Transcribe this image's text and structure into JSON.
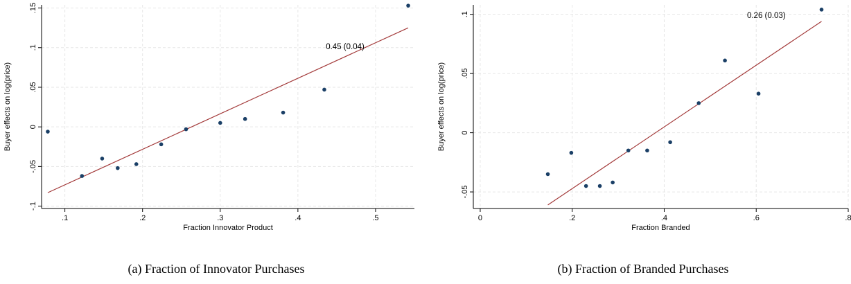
{
  "chart_data": [
    {
      "type": "scatter",
      "caption": "(a)  Fraction of Innovator Purchases",
      "xlabel": "Fraction Innovator Product",
      "ylabel": "Buyer effects on log(price)",
      "xlim": [
        0.07,
        0.55
      ],
      "ylim": [
        -0.103,
        0.154
      ],
      "xticks": [
        0.1,
        0.2,
        0.3,
        0.4,
        0.5
      ],
      "xtick_labels": [
        ".1",
        ".2",
        ".3",
        ".4",
        ".5"
      ],
      "yticks": [
        -0.1,
        -0.05,
        0,
        0.05,
        0.1,
        0.15
      ],
      "ytick_labels": [
        "-.1",
        "-.05",
        "0",
        ".05",
        ".1",
        ".15"
      ],
      "grid": true,
      "points": {
        "x": [
          0.078,
          0.122,
          0.148,
          0.168,
          0.192,
          0.224,
          0.256,
          0.3,
          0.332,
          0.381,
          0.434,
          0.542
        ],
        "y": [
          -0.006,
          -0.062,
          -0.04,
          -0.052,
          -0.047,
          -0.022,
          -0.003,
          0.005,
          0.01,
          0.018,
          0.047,
          0.153
        ]
      },
      "fit_line": {
        "x": [
          0.078,
          0.542
        ],
        "y": [
          -0.083,
          0.125
        ]
      },
      "annotation": {
        "text": "0.45 (0.04)",
        "x": 0.436,
        "y": 0.098
      }
    },
    {
      "type": "scatter",
      "caption": "(b)  Fraction of Branded Purchases",
      "xlabel": "Fraction Branded",
      "ylabel": "Buyer effects on log(price)",
      "xlim": [
        -0.015,
        0.8
      ],
      "ylim": [
        -0.064,
        0.108
      ],
      "xticks": [
        0,
        0.2,
        0.4,
        0.6,
        0.8
      ],
      "xtick_labels": [
        "0",
        ".2",
        ".4",
        ".6",
        ".8"
      ],
      "yticks": [
        -0.05,
        0,
        0.05,
        0.1
      ],
      "ytick_labels": [
        "-.05",
        "0",
        ".05",
        ".1"
      ],
      "grid": true,
      "points": {
        "x": [
          0.147,
          0.198,
          0.23,
          0.26,
          0.288,
          0.322,
          0.363,
          0.413,
          0.475,
          0.532,
          0.605,
          0.742
        ],
        "y": [
          -0.035,
          -0.017,
          -0.045,
          -0.045,
          -0.042,
          -0.015,
          -0.015,
          -0.008,
          0.025,
          0.061,
          0.033,
          0.104
        ]
      },
      "fit_line": {
        "x": [
          0.147,
          0.742
        ],
        "y": [
          -0.061,
          0.094
        ]
      },
      "annotation": {
        "text": "0.26 (0.03)",
        "x": 0.58,
        "y": 0.097
      }
    }
  ]
}
